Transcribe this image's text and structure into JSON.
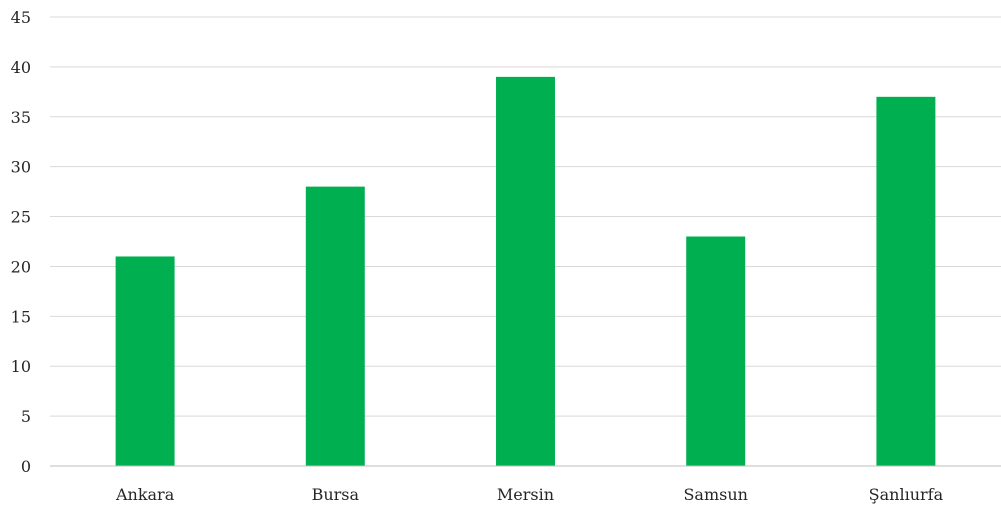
{
  "chart_data": {
    "type": "bar",
    "title": "",
    "xlabel": "",
    "ylabel": "",
    "categories": [
      "Ankara",
      "Bursa",
      "Mersin",
      "Samsun",
      "Şanlıurfa"
    ],
    "series": [
      {
        "values": [
          21,
          28,
          39,
          23,
          37
        ],
        "color": "#00b050"
      }
    ],
    "ylim": [
      0,
      45
    ],
    "yticks": [
      0,
      5,
      10,
      15,
      20,
      25,
      30,
      35,
      40,
      45
    ],
    "grid": true,
    "legend": "none"
  }
}
